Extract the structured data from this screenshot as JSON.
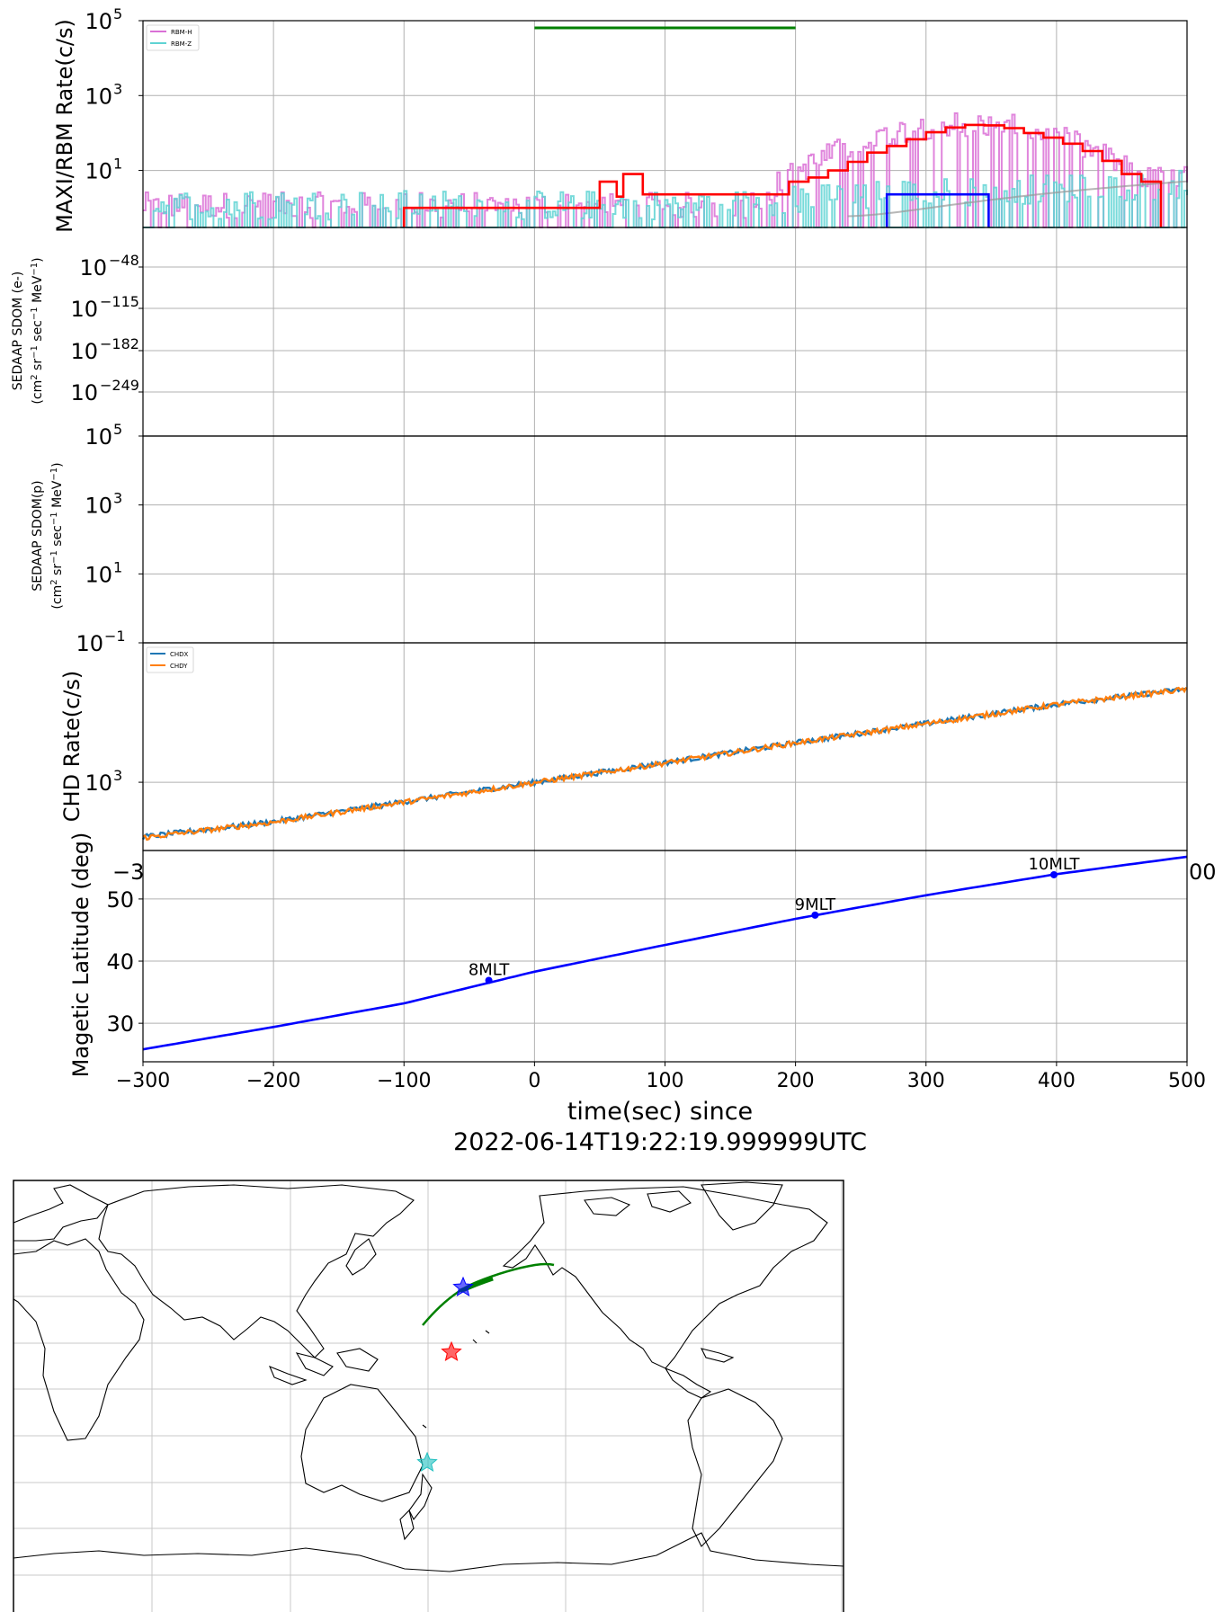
{
  "colors": {
    "rbm_h": "#da70d6",
    "rbm_z": "#5fd3d3",
    "red_step": "#ff0000",
    "blue_step": "#0000ff",
    "green_bar": "#008000",
    "chdx": "#1f77b4",
    "chdy": "#ff7f0e",
    "maglat": "#0000ff",
    "grid": "#b0b0b0"
  },
  "chart_data": [
    {
      "type": "line",
      "ylabel": "MAXI/RBM Rate(c/s)",
      "yscale": "log",
      "ylim": [
        0.3,
        100000
      ],
      "xlim": [
        -300,
        500
      ],
      "grid": true,
      "legend_position": "top-left",
      "y_ticks": [
        {
          "value": 100000,
          "label": "10",
          "exp": "5"
        },
        {
          "value": 1000,
          "label": "10",
          "exp": "3"
        },
        {
          "value": 10,
          "label": "10",
          "exp": "1"
        }
      ],
      "series": [
        {
          "name": "RBM-H",
          "noise": "baseline 1 c/s, Gaussian peak ~150 c/s near 330 s"
        },
        {
          "name": "RBM-Z",
          "noise": "baseline 1 c/s, rising after 100 s"
        }
      ],
      "steps_red": {
        "x": [
          -100,
          50,
          63,
          68,
          83,
          195,
          210,
          225,
          240,
          255,
          270,
          285,
          300,
          315,
          330,
          345,
          360,
          375,
          390,
          405,
          420,
          435,
          450,
          465
        ],
        "y": [
          1,
          5,
          2,
          8,
          2.3,
          5,
          6.5,
          10,
          17,
          30,
          45,
          68,
          105,
          140,
          165,
          160,
          135,
          100,
          75,
          52,
          33,
          18,
          8,
          5
        ]
      },
      "steps_blue": {
        "x": [
          270,
          348
        ],
        "y": [
          2.3,
          2.3
        ]
      },
      "green_bar": {
        "x": [
          0,
          200
        ],
        "y": 100000
      },
      "smooth_curve": "grey, rising from ~1 c/s at 250 s to ~5 c/s at 500 s"
    },
    {
      "type": "line",
      "ylabel_line1": "SEDAAP SDOM (e-)",
      "ylabel_line2": "(cm",
      "ylabel_line3": " sr",
      "ylabel_line4": " sec",
      "ylabel_line5": " MeV",
      "ylabel_line6": ")",
      "y_ticks": [
        {
          "label": "10",
          "exp": "−48"
        },
        {
          "label": "10",
          "exp": "−115"
        },
        {
          "label": "10",
          "exp": "−182"
        },
        {
          "label": "10",
          "exp": "−249"
        }
      ],
      "xlim": [
        -300,
        500
      ],
      "grid": true,
      "series": []
    },
    {
      "type": "line",
      "ylabel_line1": "SEDAAP SDOM(p)",
      "ylabel_line2": "(cm",
      "ylabel_line3": " sr",
      "ylabel_line4": " sec",
      "ylabel_line5": " MeV",
      "ylabel_line6": ")",
      "yscale": "log",
      "ylim": [
        0.1,
        100000
      ],
      "xlim": [
        -300,
        500
      ],
      "y_ticks": [
        {
          "value": 100000,
          "label": "10",
          "exp": "5"
        },
        {
          "value": 1000,
          "label": "10",
          "exp": "3"
        },
        {
          "value": 10,
          "label": "10",
          "exp": "1"
        },
        {
          "value": 0.1,
          "label": "10",
          "exp": "−1"
        }
      ],
      "grid": true,
      "series": []
    },
    {
      "type": "line",
      "ylabel": "CHD Rate(c/s)",
      "yscale": "log",
      "ylim": [
        400,
        6500
      ],
      "xlim": [
        -300,
        500
      ],
      "legend_position": "top-left",
      "grid": true,
      "y_ticks": [
        {
          "value": 1000,
          "label": "10",
          "exp": "3"
        }
      ],
      "clipped_tick_labels": [
        "−3",
        "00"
      ],
      "series": [
        {
          "name": "CHDX",
          "x": [
            -300,
            -200,
            -100,
            0,
            100,
            200,
            300,
            400,
            500
          ],
          "y": [
            480,
            590,
            770,
            1000,
            1300,
            1700,
            2200,
            2850,
            3500
          ]
        },
        {
          "name": "CHDY",
          "x": [
            -300,
            -200,
            -100,
            0,
            100,
            200,
            300,
            400,
            500
          ],
          "y": [
            475,
            585,
            765,
            995,
            1295,
            1695,
            2190,
            2840,
            3490
          ]
        }
      ]
    },
    {
      "type": "line",
      "ylabel": "Magetic Latitude  (deg)",
      "xlabel_line1": "time(sec) since",
      "xlabel_line2": "2022-06-14T19:22:19.999999UTC",
      "xlim": [
        -300,
        500
      ],
      "ylim": [
        23.8,
        57.8
      ],
      "grid": true,
      "x_ticks": [
        {
          "value": -300,
          "label": "−300"
        },
        {
          "value": -200,
          "label": "−200"
        },
        {
          "value": -100,
          "label": "−100"
        },
        {
          "value": 0,
          "label": "0"
        },
        {
          "value": 100,
          "label": "100"
        },
        {
          "value": 200,
          "label": "200"
        },
        {
          "value": 300,
          "label": "300"
        },
        {
          "value": 400,
          "label": "400"
        },
        {
          "value": 500,
          "label": "500"
        }
      ],
      "y_ticks": [
        {
          "value": 50,
          "label": "50"
        },
        {
          "value": 40,
          "label": "40"
        },
        {
          "value": 30,
          "label": "30"
        }
      ],
      "series": [
        {
          "name": "",
          "x": [
            -300,
            -200,
            -100,
            0,
            100,
            200,
            300,
            400,
            500
          ],
          "y": [
            25.8,
            29.4,
            33.2,
            38.3,
            42.6,
            46.8,
            50.6,
            54.0,
            56.8
          ]
        }
      ],
      "annotations": [
        {
          "x": -35,
          "y": 36.9,
          "label": "8MLT"
        },
        {
          "x": 215,
          "y": 47.4,
          "label": "9MLT"
        },
        {
          "x": 398,
          "y": 53.9,
          "label": "10MLT"
        }
      ]
    },
    {
      "type": "scatter",
      "map": "world coastline, Pacific-centred, PlateCarree",
      "lon_range": [
        20,
        380
      ],
      "lat_range": [
        -90,
        90
      ],
      "track_green_lonlat": [
        [
          178,
          13
        ],
        [
          187,
          25
        ],
        [
          197,
          32
        ],
        [
          212,
          37
        ],
        [
          226,
          40
        ]
      ],
      "stars": [
        {
          "color": "blue",
          "lon": 195,
          "lat": 30
        },
        {
          "color": "red",
          "lon": 191,
          "lat": 3
        },
        {
          "color": "cyan",
          "lon": 180,
          "lat": -44
        }
      ]
    }
  ]
}
